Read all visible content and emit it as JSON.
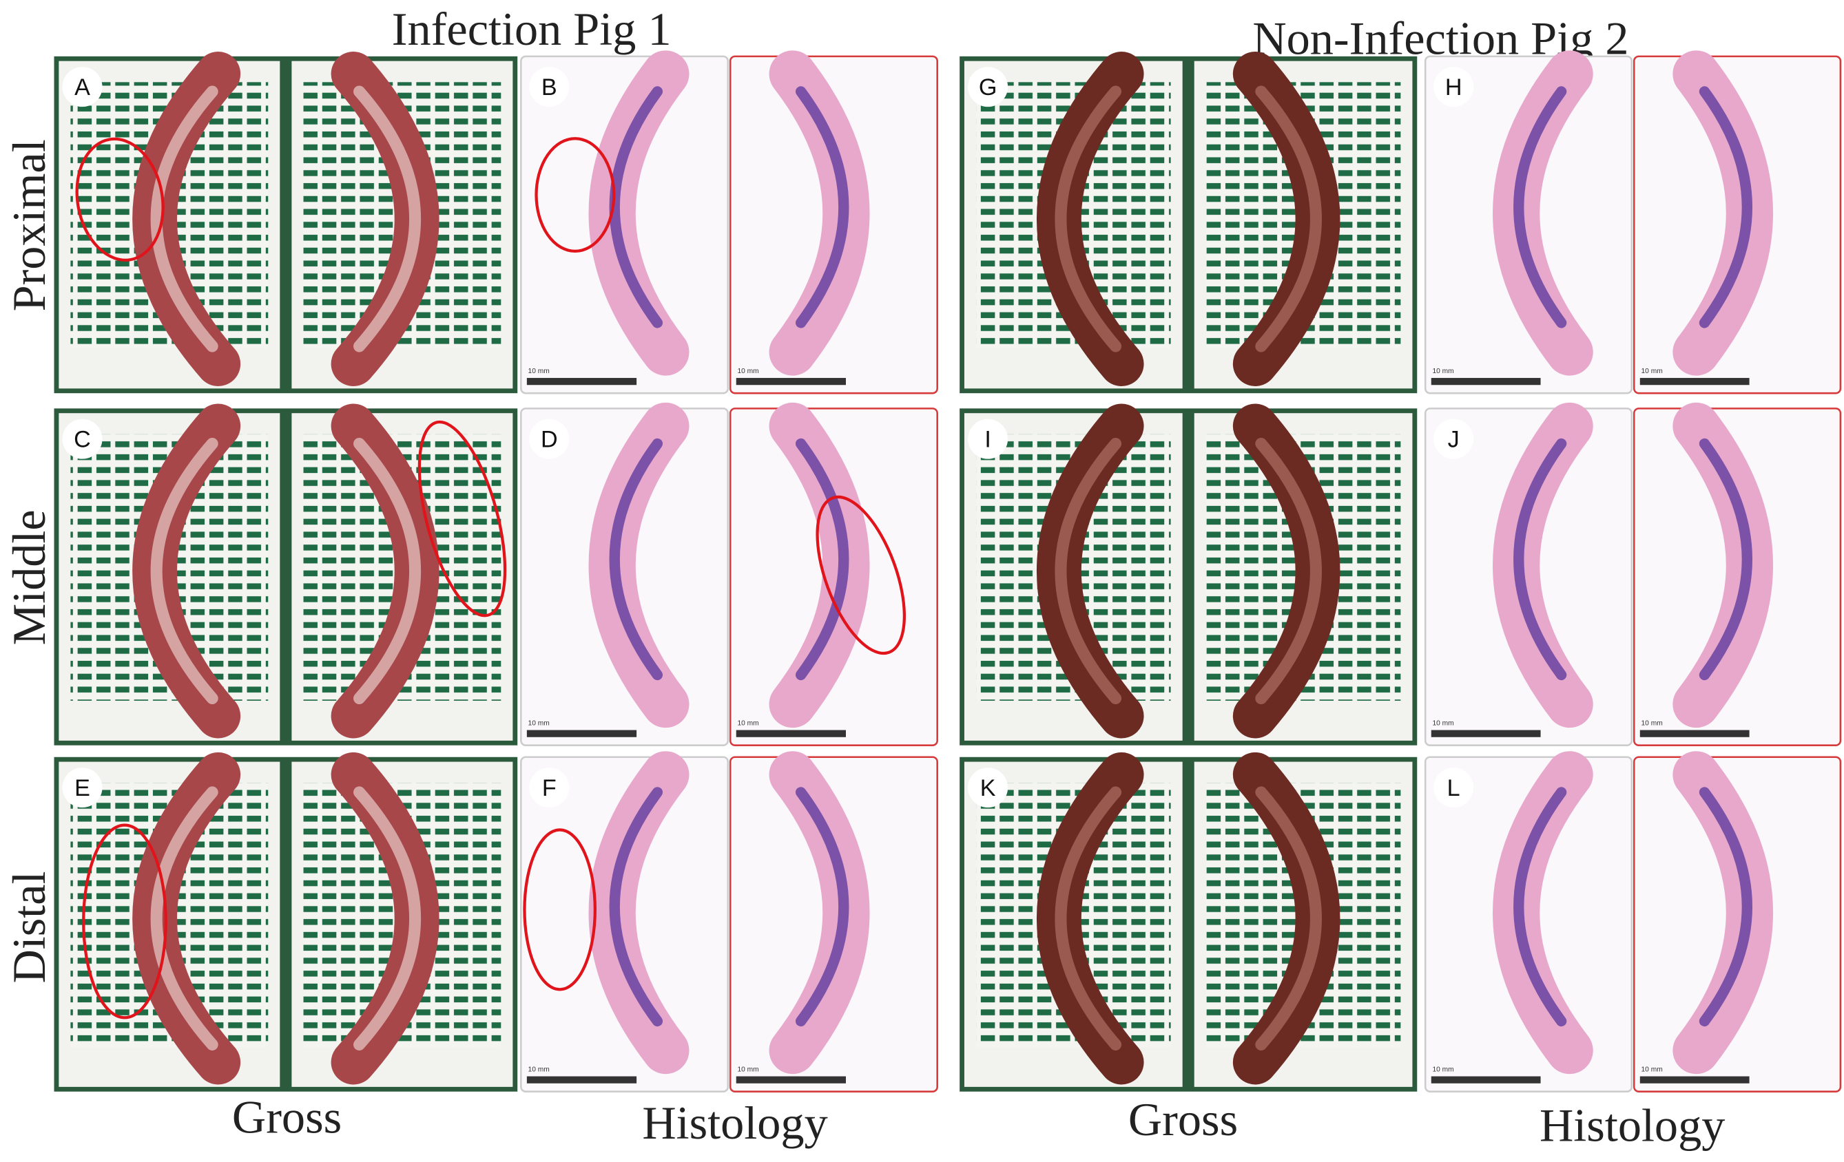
{
  "titles": [
    "Infection Pig 1",
    "Non-Infection Pig 2"
  ],
  "row_labels": [
    "Proximal",
    "Middle",
    "Distal"
  ],
  "column_labels": [
    "Gross",
    "Histology",
    "Gross",
    "Histology"
  ],
  "panels": [
    {
      "letter": "A"
    },
    {
      "letter": "B",
      "scale_bars": [
        "10 mm",
        "10 mm"
      ]
    },
    {
      "letter": "C"
    },
    {
      "letter": "D",
      "scale_bars": [
        "10 mm",
        "10 mm"
      ]
    },
    {
      "letter": "E"
    },
    {
      "letter": "F",
      "scale_bars": [
        "10 mm",
        "10 mm"
      ]
    },
    {
      "letter": "G"
    },
    {
      "letter": "H",
      "scale_bars": [
        "10 mm",
        "10 mm"
      ]
    },
    {
      "letter": "I"
    },
    {
      "letter": "J",
      "scale_bars": [
        "10 mm",
        "10 mm"
      ]
    },
    {
      "letter": "K"
    },
    {
      "letter": "L",
      "scale_bars": [
        "10 mm",
        "10 mm"
      ]
    }
  ]
}
